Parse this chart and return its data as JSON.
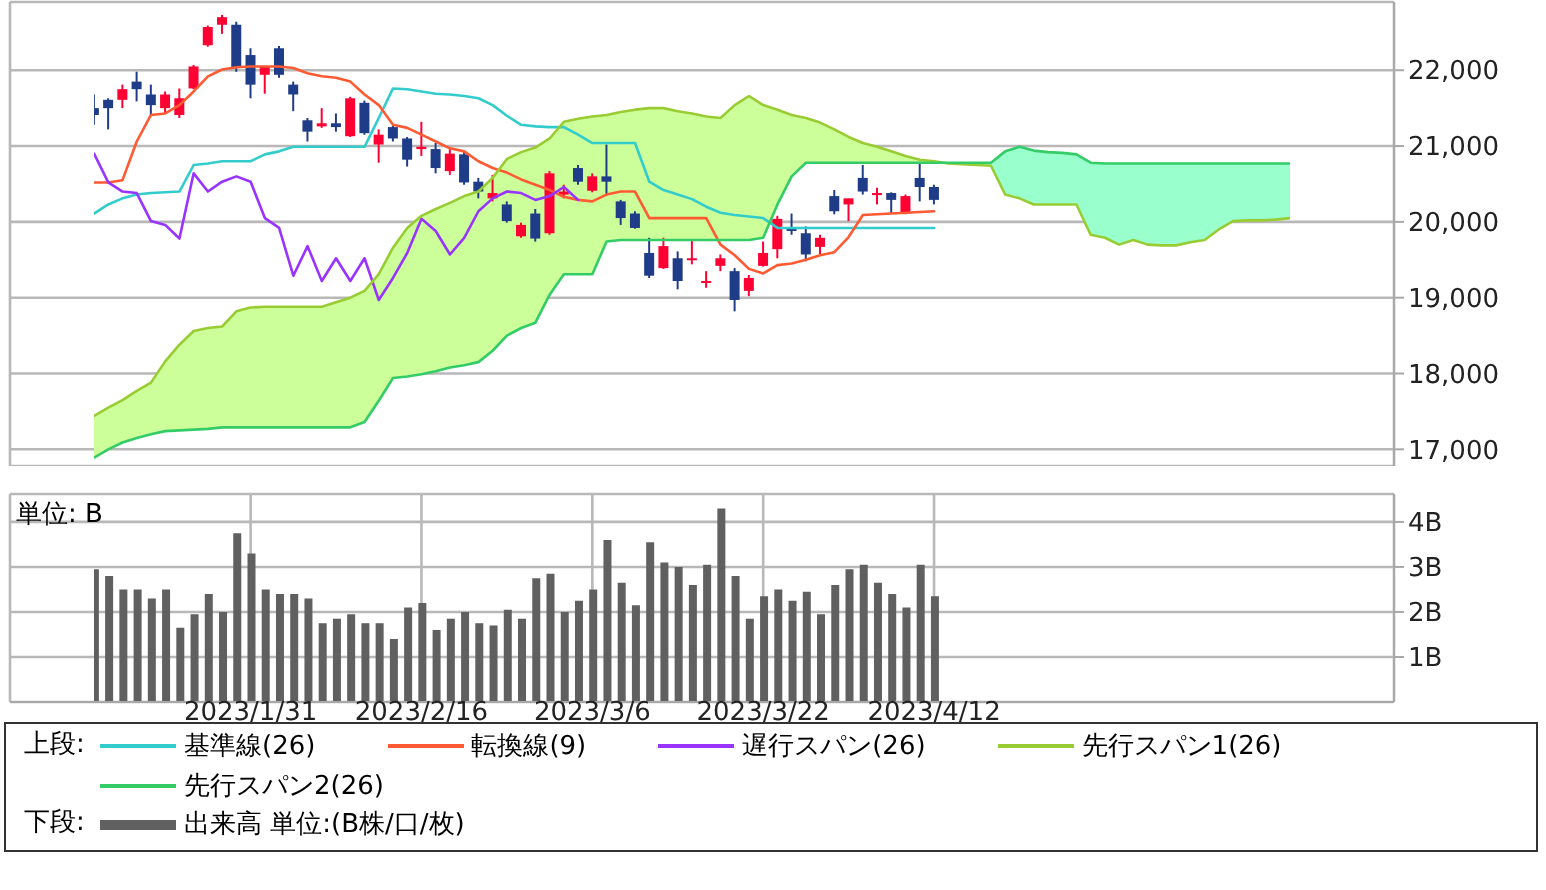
{
  "chart_data": [
    {
      "type": "candlestick",
      "categories": [
        null,
        null,
        null,
        null,
        null,
        null,
        null,
        null,
        null,
        null,
        null,
        "2023/1/31",
        null,
        null,
        null,
        null,
        null,
        null,
        null,
        null,
        null,
        null,
        null,
        "2023/2/16",
        null,
        null,
        null,
        null,
        null,
        null,
        null,
        null,
        null,
        null,
        null,
        "2023/3/6",
        null,
        null,
        null,
        null,
        null,
        null,
        null,
        null,
        null,
        null,
        null,
        "2023/3/22",
        null,
        null,
        null,
        null,
        null,
        null,
        null,
        null,
        null,
        null,
        null,
        "2023/4/12",
        null,
        null,
        null,
        null,
        null,
        null,
        null,
        null,
        null,
        null,
        null,
        null,
        null,
        null,
        null,
        null,
        null,
        null,
        null,
        null,
        null,
        null,
        null,
        null,
        null
      ],
      "ohlc": [
        [
          21500,
          21680,
          21280,
          21410
        ],
        [
          21610,
          21630,
          21220,
          21500
        ],
        [
          21610,
          21810,
          21500,
          21750
        ],
        [
          21850,
          21980,
          21590,
          21750
        ],
        [
          21680,
          21810,
          21410,
          21540
        ],
        [
          21500,
          21720,
          21430,
          21680
        ],
        [
          21410,
          21760,
          21370,
          21630
        ],
        [
          21760,
          22070,
          21750,
          22050
        ],
        [
          22330,
          22590,
          22310,
          22570
        ],
        [
          22600,
          22730,
          22480,
          22700
        ],
        [
          22600,
          22640,
          21980,
          22030
        ],
        [
          22200,
          22290,
          21630,
          21810
        ],
        [
          21940,
          22050,
          21690,
          22050
        ],
        [
          22290,
          22320,
          21900,
          21940
        ],
        [
          21810,
          21850,
          21460,
          21680
        ],
        [
          21340,
          21370,
          21060,
          21190
        ],
        [
          21260,
          21500,
          21240,
          21300
        ],
        [
          21300,
          21430,
          21190,
          21250
        ],
        [
          21130,
          21650,
          21120,
          21630
        ],
        [
          21570,
          21600,
          21150,
          21170
        ],
        [
          21020,
          21220,
          20780,
          21150
        ],
        [
          21250,
          21270,
          21060,
          21100
        ],
        [
          21100,
          21120,
          20730,
          20820
        ],
        [
          20960,
          21320,
          20870,
          20990
        ],
        [
          20960,
          21040,
          20640,
          20710
        ],
        [
          20670,
          20960,
          20620,
          20900
        ],
        [
          20890,
          20930,
          20490,
          20520
        ],
        [
          20530,
          20580,
          20310,
          20400
        ],
        [
          20310,
          20620,
          20270,
          20380
        ],
        [
          20230,
          20270,
          19990,
          20010
        ],
        [
          19810,
          19990,
          19790,
          19960
        ],
        [
          20110,
          20170,
          19740,
          19780
        ],
        [
          19850,
          20670,
          19830,
          20640
        ],
        [
          20360,
          20490,
          20310,
          20400
        ],
        [
          20710,
          20750,
          20490,
          20530
        ],
        [
          20410,
          20640,
          20390,
          20600
        ],
        [
          20600,
          21020,
          20360,
          20530
        ],
        [
          20270,
          20290,
          19960,
          20050
        ],
        [
          20110,
          20140,
          19910,
          19920
        ],
        [
          19590,
          19790,
          19260,
          19290
        ],
        [
          19390,
          19790,
          19380,
          19680
        ],
        [
          19520,
          19610,
          19110,
          19220
        ],
        [
          19500,
          19760,
          19440,
          19520
        ],
        [
          19200,
          19350,
          19130,
          19220
        ],
        [
          19420,
          19570,
          19350,
          19520
        ],
        [
          19350,
          19390,
          18820,
          18970
        ],
        [
          19090,
          19300,
          19020,
          19260
        ],
        [
          19420,
          19740,
          19410,
          19590
        ],
        [
          19640,
          20080,
          19520,
          20040
        ],
        [
          19920,
          20110,
          19830,
          19880
        ],
        [
          19850,
          19940,
          19480,
          19570
        ],
        [
          19670,
          19830,
          19570,
          19790
        ],
        [
          20340,
          20420,
          20100,
          20140
        ],
        [
          20230,
          20310,
          20010,
          20310
        ],
        [
          20580,
          20750,
          20360,
          20400
        ],
        [
          20360,
          20450,
          20230,
          20380
        ],
        [
          20380,
          20390,
          20110,
          20290
        ],
        [
          20110,
          20360,
          20100,
          20340
        ],
        [
          20580,
          20770,
          20270,
          20460
        ],
        [
          20460,
          20490,
          20230,
          20290
        ],
        null,
        null,
        null,
        null,
        null,
        null,
        null,
        null,
        null,
        null,
        null,
        null,
        null,
        null,
        null,
        null,
        null,
        null,
        null,
        null,
        null,
        null,
        null,
        null,
        null
      ],
      "colors": [
        "#1f3c88",
        "#1f3c88",
        "#ff0033",
        "#1f3c88",
        "#1f3c88",
        "#ff0033",
        "#ff0033",
        "#ff0033",
        "#ff0033",
        "#ff0033",
        "#1f3c88",
        "#1f3c88",
        "#ff0033",
        "#1f3c88",
        "#1f3c88",
        "#1f3c88",
        "#ff0033",
        "#1f3c88",
        "#ff0033",
        "#1f3c88",
        "#ff0033",
        "#1f3c88",
        "#1f3c88",
        "#ff0033",
        "#1f3c88",
        "#ff0033",
        "#1f3c88",
        "#1f3c88",
        "#ff0033",
        "#1f3c88",
        "#ff0033",
        "#1f3c88",
        "#ff0033",
        "#ff0033",
        "#1f3c88",
        "#ff0033",
        "#1f3c88",
        "#1f3c88",
        "#1f3c88",
        "#1f3c88",
        "#ff0033",
        "#1f3c88",
        "#ff0033",
        "#ff0033",
        "#ff0033",
        "#1f3c88",
        "#ff0033",
        "#ff0033",
        "#ff0033",
        "#1f3c88",
        "#1f3c88",
        "#ff0033",
        "#1f3c88",
        "#ff0033",
        "#1f3c88",
        "#ff0033",
        "#1f3c88",
        "#ff0033",
        "#1f3c88",
        "#1f3c88",
        null,
        null,
        null,
        null,
        null,
        null,
        null,
        null,
        null,
        null,
        null,
        null,
        null,
        null,
        null,
        null,
        null,
        null,
        null,
        null,
        null,
        null,
        null,
        null,
        null
      ],
      "series": [
        {
          "type": "area",
          "color": "#ccff99",
          "values": [
            null,
            null,
            null,
            null,
            null,
            null,
            null,
            null,
            null,
            null,
            null,
            null,
            null,
            null,
            null,
            null,
            null,
            null,
            null,
            null,
            null,
            null,
            null,
            null,
            null,
            null,
            null,
            null,
            null,
            null,
            null,
            null,
            null,
            null,
            null,
            null,
            null,
            null,
            null,
            null,
            null,
            null,
            null,
            null,
            null,
            null,
            null,
            null,
            null,
            null,
            null,
            null,
            null,
            null,
            null,
            null,
            null,
            null,
            null,
            null,
            null,
            null,
            null,
            null,
            null,
            null,
            null,
            null,
            null,
            null,
            null,
            null,
            null,
            null,
            null,
            null,
            null,
            null,
            null,
            null,
            null,
            null,
            null,
            null,
            null
          ],
          "lower": [
            16890,
            17000,
            17090,
            17150,
            17200,
            17240,
            17250,
            17260,
            17270,
            17290,
            17290,
            17290,
            17290,
            17290,
            17290,
            17290,
            17290,
            17290,
            17290,
            17360,
            17640,
            17940,
            17960,
            17990,
            18030,
            18080,
            18110,
            18150,
            18300,
            18500,
            18600,
            18670,
            19040,
            19310,
            19310,
            19310,
            19740,
            19760,
            19760,
            19760,
            19760,
            19760,
            19760,
            19760,
            19760,
            19760,
            19760,
            19790,
            20230,
            20600,
            20780,
            20780,
            20780,
            20780,
            20780,
            20780,
            20780,
            20780,
            20780,
            20780,
            null,
            null,
            null,
            null,
            null,
            null,
            null,
            null,
            null,
            null,
            null,
            null,
            null,
            null,
            null,
            null,
            null,
            null,
            null,
            null,
            null,
            null,
            null,
            null,
            null
          ],
          "upper": [
            17440,
            17550,
            17650,
            17770,
            17880,
            18160,
            18380,
            18560,
            18600,
            18620,
            18820,
            18870,
            18880,
            18880,
            18880,
            18880,
            18880,
            18940,
            19000,
            19090,
            19310,
            19660,
            19920,
            20080,
            20170,
            20250,
            20340,
            20400,
            20580,
            20830,
            20920,
            20980,
            21100,
            21320,
            21360,
            21390,
            21410,
            21450,
            21480,
            21500,
            21500,
            21460,
            21430,
            21390,
            21370,
            21540,
            21660,
            21540,
            21480,
            21410,
            21370,
            21310,
            21220,
            21120,
            21040,
            20990,
            20930,
            20870,
            20820,
            20800,
            null,
            null,
            null,
            null,
            null,
            null,
            null,
            null,
            null,
            null,
            null,
            null,
            null,
            null,
            null,
            null,
            null,
            null,
            null,
            null,
            null,
            null,
            null,
            null,
            null
          ]
        },
        {
          "type": "area",
          "color": "#99ffcc",
          "values": [
            null,
            null,
            null,
            null,
            null,
            null,
            null,
            null,
            null,
            null,
            null,
            null,
            null,
            null,
            null,
            null,
            null,
            null,
            null,
            null,
            null,
            null,
            null,
            null,
            null,
            null,
            null,
            null,
            null,
            null,
            null,
            null,
            null,
            null,
            null,
            null,
            null,
            null,
            null,
            null,
            null,
            null,
            null,
            null,
            null,
            null,
            null,
            null,
            null,
            null,
            null,
            null,
            null,
            null,
            null,
            null,
            null,
            null,
            null,
            null,
            null,
            null,
            null,
            null,
            null,
            null,
            null,
            null,
            null,
            null,
            null,
            null,
            null,
            null,
            null,
            null,
            null,
            null,
            null,
            null,
            null,
            null,
            null,
            null,
            null
          ],
          "lower": [
            null,
            null,
            null,
            null,
            null,
            null,
            null,
            null,
            null,
            null,
            null,
            null,
            null,
            null,
            null,
            null,
            null,
            null,
            null,
            null,
            null,
            null,
            null,
            null,
            null,
            null,
            null,
            null,
            null,
            null,
            null,
            null,
            null,
            null,
            null,
            null,
            null,
            null,
            null,
            null,
            null,
            null,
            null,
            null,
            null,
            null,
            null,
            null,
            null,
            null,
            null,
            null,
            null,
            null,
            null,
            null,
            null,
            null,
            null,
            20800,
            20770,
            20760,
            20750,
            20740,
            20360,
            20310,
            20230,
            20230,
            20230,
            20230,
            19830,
            19790,
            19700,
            19760,
            19700,
            19690,
            19690,
            19730,
            19760,
            19900,
            20010,
            20020,
            20020,
            20030,
            20050
          ],
          "upper": [
            null,
            null,
            null,
            null,
            null,
            null,
            null,
            null,
            null,
            null,
            null,
            null,
            null,
            null,
            null,
            null,
            null,
            null,
            null,
            null,
            null,
            null,
            null,
            null,
            null,
            null,
            null,
            null,
            null,
            null,
            null,
            null,
            null,
            null,
            null,
            null,
            null,
            null,
            null,
            null,
            null,
            null,
            null,
            null,
            null,
            null,
            null,
            null,
            null,
            null,
            null,
            null,
            null,
            null,
            null,
            null,
            null,
            null,
            null,
            20780,
            20780,
            20780,
            20780,
            20780,
            20930,
            20990,
            20940,
            20920,
            20910,
            20890,
            20780,
            20770,
            20770,
            20770,
            20770,
            20770,
            20770,
            20770,
            20770,
            20770,
            20770,
            20770,
            20770,
            20770,
            20770
          ]
        },
        {
          "name": "基準線(26)",
          "type": "line",
          "color": "#33cccc",
          "values": [
            20110,
            20230,
            20310,
            20360,
            20380,
            20390,
            20400,
            20750,
            20770,
            20800,
            20800,
            20800,
            20890,
            20930,
            20990,
            20990,
            20990,
            20990,
            20990,
            20990,
            21370,
            21760,
            21750,
            21720,
            21690,
            21680,
            21660,
            21630,
            21540,
            21400,
            21280,
            21260,
            21250,
            21250,
            21150,
            21040,
            21040,
            21040,
            21040,
            20530,
            20420,
            20360,
            20300,
            20200,
            20120,
            20090,
            20070,
            20050,
            19920,
            19920,
            19920,
            19920,
            19920,
            19920,
            19920,
            19920,
            19920,
            19920,
            19920,
            19920,
            null,
            null,
            null,
            null,
            null,
            null,
            null,
            null,
            null,
            null,
            null,
            null,
            null,
            null,
            null,
            null,
            null,
            null,
            null,
            null,
            null,
            null,
            null,
            null,
            null
          ]
        },
        {
          "name": "転換線(9)",
          "type": "line",
          "color": "#ff5a32",
          "values": [
            20520,
            20520,
            20550,
            21060,
            21410,
            21430,
            21540,
            21720,
            21920,
            22010,
            22040,
            22050,
            22050,
            22050,
            22030,
            21960,
            21920,
            21900,
            21850,
            21680,
            21540,
            21280,
            21240,
            21150,
            21060,
            20970,
            20930,
            20800,
            20710,
            20650,
            20560,
            20490,
            20420,
            20330,
            20290,
            20270,
            20360,
            20400,
            20400,
            20050,
            20050,
            20050,
            20050,
            20050,
            19700,
            19560,
            19380,
            19320,
            19430,
            19450,
            19500,
            19560,
            19600,
            19800,
            20090,
            20100,
            20110,
            20120,
            20130,
            20140,
            null,
            null,
            null,
            null,
            null,
            null,
            null,
            null,
            null,
            null,
            null,
            null,
            null,
            null,
            null,
            null,
            null,
            null,
            null,
            null,
            null,
            null,
            null,
            null,
            null
          ]
        },
        {
          "name": "遅行スパン(26)",
          "type": "line",
          "color": "#9933ff",
          "values": [
            20900,
            20520,
            20400,
            20380,
            20010,
            19960,
            19780,
            20640,
            20400,
            20530,
            20600,
            20530,
            20050,
            19920,
            19290,
            19680,
            19220,
            19520,
            19220,
            19520,
            18970,
            19260,
            19590,
            20040,
            19880,
            19570,
            19790,
            20140,
            20310,
            20400,
            20380,
            20290,
            20340,
            20460,
            20290,
            null,
            null,
            null,
            null,
            null,
            null,
            null,
            null,
            null,
            null,
            null,
            null,
            null,
            null,
            null,
            null,
            null,
            null,
            null,
            null,
            null,
            null,
            null,
            null,
            null,
            null,
            null,
            null,
            null,
            null,
            null,
            null,
            null,
            null,
            null,
            null,
            null,
            null,
            null,
            null,
            null,
            null,
            null,
            null,
            null,
            null,
            null,
            null,
            null,
            null
          ]
        },
        {
          "name": "先行スパン1(26)",
          "type": "line",
          "color": "#99cc33",
          "values": [
            17440,
            17550,
            17650,
            17770,
            17880,
            18160,
            18380,
            18560,
            18600,
            18620,
            18820,
            18870,
            18880,
            18880,
            18880,
            18880,
            18880,
            18940,
            19000,
            19090,
            19310,
            19660,
            19920,
            20080,
            20170,
            20250,
            20340,
            20400,
            20580,
            20830,
            20920,
            20980,
            21100,
            21320,
            21360,
            21390,
            21410,
            21450,
            21480,
            21500,
            21500,
            21460,
            21430,
            21390,
            21370,
            21540,
            21660,
            21540,
            21480,
            21410,
            21370,
            21310,
            21220,
            21120,
            21040,
            20990,
            20930,
            20870,
            20820,
            20800,
            20770,
            20760,
            20750,
            20740,
            20360,
            20310,
            20230,
            20230,
            20230,
            20230,
            19830,
            19790,
            19700,
            19760,
            19700,
            19690,
            19690,
            19730,
            19760,
            19900,
            20010,
            20020,
            20020,
            20030,
            20050
          ]
        },
        {
          "name": "先行スパン2(26)",
          "type": "line",
          "color": "#33cc66",
          "values": [
            16890,
            17000,
            17090,
            17150,
            17200,
            17240,
            17250,
            17260,
            17270,
            17290,
            17290,
            17290,
            17290,
            17290,
            17290,
            17290,
            17290,
            17290,
            17290,
            17360,
            17640,
            17940,
            17960,
            17990,
            18030,
            18080,
            18110,
            18150,
            18300,
            18500,
            18600,
            18670,
            19040,
            19310,
            19310,
            19310,
            19740,
            19760,
            19760,
            19760,
            19760,
            19760,
            19760,
            19760,
            19760,
            19760,
            19760,
            19790,
            20230,
            20600,
            20780,
            20780,
            20780,
            20780,
            20780,
            20780,
            20780,
            20780,
            20780,
            20780,
            20780,
            20780,
            20780,
            20780,
            20930,
            20990,
            20940,
            20920,
            20910,
            20890,
            20780,
            20770,
            20770,
            20770,
            20770,
            20770,
            20770,
            20770,
            20770,
            20770,
            20770,
            20770,
            20770,
            20770,
            20770
          ]
        }
      ],
      "ylim": [
        16780,
        22900
      ],
      "yticks": [
        {
          "value": 17000,
          "label": "17,000"
        },
        {
          "value": 18000,
          "label": "18,000"
        },
        {
          "value": 19000,
          "label": "19,000"
        },
        {
          "value": 20000,
          "label": "20,000"
        },
        {
          "value": 21000,
          "label": "21,000"
        },
        {
          "value": 22000,
          "label": "22,000"
        }
      ],
      "grid": true,
      "legend": "bottom",
      "legend_title": "上段:",
      "tick_labels": "y"
    },
    {
      "type": "bar",
      "categories": [
        null,
        null,
        null,
        null,
        null,
        null,
        null,
        null,
        null,
        null,
        null,
        "2023/1/31",
        null,
        null,
        null,
        null,
        null,
        null,
        null,
        null,
        null,
        null,
        null,
        "2023/2/16",
        null,
        null,
        null,
        null,
        null,
        null,
        null,
        null,
        null,
        null,
        null,
        "2023/3/6",
        null,
        null,
        null,
        null,
        null,
        null,
        null,
        null,
        null,
        null,
        null,
        "2023/3/22",
        null,
        null,
        null,
        null,
        null,
        null,
        null,
        null,
        null,
        null,
        null,
        "2023/4/12",
        null,
        null,
        null,
        null,
        null,
        null,
        null,
        null,
        null,
        null,
        null,
        null,
        null,
        null,
        null,
        null,
        null,
        null,
        null,
        null,
        null,
        null,
        null,
        null,
        null
      ],
      "series": [
        {
          "name": "出来高 単位:(B株/口/枚)",
          "color": "#606060",
          "values": [
            2.95,
            2.8,
            2.5,
            2.5,
            2.3,
            2.5,
            1.65,
            1.95,
            2.4,
            2.0,
            3.75,
            3.3,
            2.5,
            2.4,
            2.4,
            2.3,
            1.75,
            1.85,
            1.95,
            1.75,
            1.75,
            1.4,
            2.1,
            2.2,
            1.6,
            1.85,
            2.0,
            1.75,
            1.7,
            2.05,
            1.85,
            2.75,
            2.85,
            2.0,
            2.25,
            2.5,
            3.6,
            2.65,
            2.15,
            3.55,
            3.1,
            3.0,
            2.6,
            3.05,
            4.3,
            2.8,
            1.85,
            2.35,
            2.5,
            2.25,
            2.45,
            1.95,
            2.6,
            2.95,
            3.05,
            2.65,
            2.4,
            2.1,
            3.05,
            2.35,
            null,
            null,
            null,
            null,
            null,
            null,
            null,
            null,
            null,
            null,
            null,
            null,
            null,
            null,
            null,
            null,
            null,
            null,
            null,
            null,
            null,
            null,
            null,
            null,
            null
          ]
        }
      ],
      "ylim": [
        0,
        4.62
      ],
      "yticks": [
        {
          "value": 1,
          "label": "1B"
        },
        {
          "value": 2,
          "label": "2B"
        },
        {
          "value": 3,
          "label": "3B"
        },
        {
          "value": 4,
          "label": "4B"
        }
      ],
      "ylabel": "単位: B",
      "grid": true,
      "legend": "bottom",
      "legend_title": "下段:"
    }
  ]
}
